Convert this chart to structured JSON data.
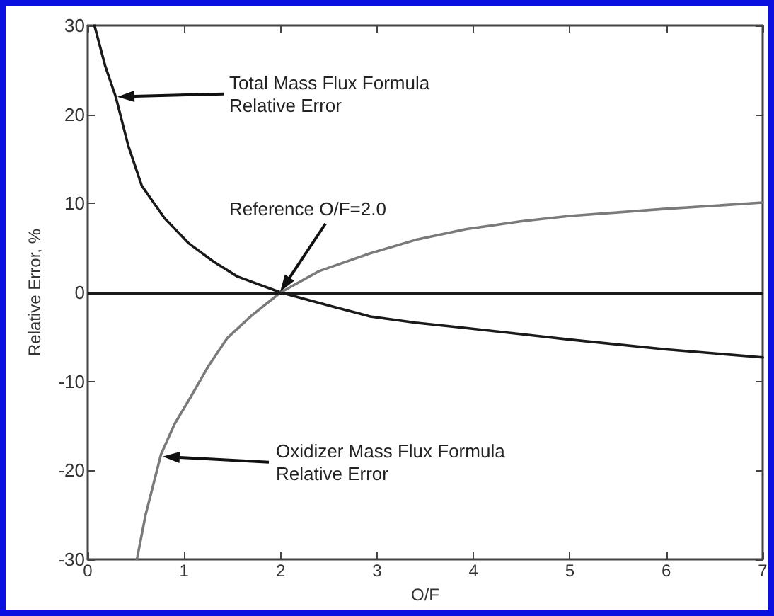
{
  "chart_data": {
    "type": "line",
    "xlabel": "O/F",
    "ylabel": "Relative Error, %",
    "xlim": [
      0,
      7
    ],
    "xticks": [
      0,
      1,
      2,
      3,
      4,
      5,
      6,
      7
    ],
    "ylim": [
      -30,
      30
    ],
    "yticks": [
      -30,
      -20,
      -10,
      0,
      10,
      20,
      30
    ],
    "grid": false,
    "marker": "none",
    "line_style": "solid",
    "series": [
      {
        "color": "#1a1a1a",
        "x": [
          0.07,
          0.18,
          0.29,
          0.42,
          0.56,
          0.8,
          1.05,
          1.3,
          1.55,
          2,
          2.54,
          2.93,
          3.4,
          3.92,
          4.5,
          5,
          6,
          7
        ],
        "values": [
          30,
          25.5,
          22,
          16.5,
          12,
          8.3,
          5.5,
          3.5,
          1.8,
          0,
          -1.6,
          -2.7,
          -3.4,
          -4,
          -4.7,
          -5.3,
          -6.4,
          -7.3
        ]
      },
      {
        "color": "#7a7a7a",
        "x": [
          0.51,
          0.6,
          0.76,
          0.9,
          1.06,
          1.25,
          1.45,
          1.7,
          2,
          2.4,
          2.93,
          3.4,
          3.92,
          4.5,
          5,
          6,
          7
        ],
        "values": [
          -30,
          -25,
          -18.2,
          -14.8,
          -11.9,
          -8.3,
          -5.1,
          -2.6,
          0,
          2.4,
          4.4,
          5.9,
          7.1,
          8,
          8.6,
          9.4,
          10.1
        ]
      }
    ],
    "ref_lines": [
      {
        "axis": "y",
        "value": 0,
        "color": "#1a1a1a"
      }
    ],
    "annotations": [
      "Total Mass Flux Formula\nRelative Error",
      "Reference O/F=2.0",
      "Oxidizer Mass Flux Formula\nRelative Error"
    ]
  }
}
